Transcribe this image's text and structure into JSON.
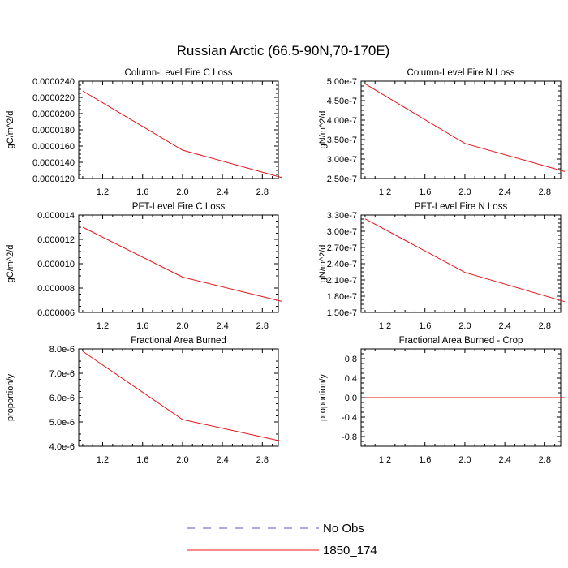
{
  "figure_title": "Russian Arctic (66.5-90N,70-170E)",
  "colors": {
    "series": "#e8141a",
    "obs": "#5a5aa0",
    "axis": "#000000"
  },
  "legend": {
    "placement": "bottom-center",
    "items": [
      {
        "label": "No Obs",
        "style": "dashed",
        "color": "#5a5aa0"
      },
      {
        "label": "1850_174",
        "style": "solid",
        "color": "#e8141a"
      }
    ]
  },
  "chart_data": [
    {
      "type": "line",
      "title": "Column-Level Fire C Loss",
      "ylabel": "gC/m^2/d",
      "xlim": [
        0.96,
        2.96
      ],
      "ylim": [
        1.2e-05,
        2.4e-05
      ],
      "xticks": [
        "1.2",
        "1.6",
        "2.0",
        "2.4",
        "2.8"
      ],
      "yticks": [
        "0.0000120",
        "0.0000140",
        "0.0000160",
        "0.0000180",
        "0.0000200",
        "0.0000220",
        "0.0000240"
      ],
      "series": [
        {
          "name": "1850_174",
          "x": [
            1,
            2,
            3
          ],
          "y": [
            2.28e-05,
            1.55e-05,
            1.21e-05
          ]
        }
      ]
    },
    {
      "type": "line",
      "title": "Column-Level Fire N Loss",
      "ylabel": "gN/m^2/d",
      "xlim": [
        0.96,
        2.96
      ],
      "ylim": [
        2.5e-07,
        5e-07
      ],
      "xticks": [
        "1.2",
        "1.6",
        "2.0",
        "2.4",
        "2.8"
      ],
      "yticks": [
        "2.50e-7",
        "3.00e-7",
        "3.50e-7",
        "4.00e-7",
        "4.50e-7",
        "5.00e-7"
      ],
      "series": [
        {
          "name": "1850_174",
          "x": [
            1,
            2,
            3
          ],
          "y": [
            4.93e-07,
            3.4e-07,
            2.68e-07
          ]
        }
      ]
    },
    {
      "type": "line",
      "title": "PFT-Level Fire C Loss",
      "ylabel": "gC/m^2/d",
      "xlim": [
        0.96,
        2.96
      ],
      "ylim": [
        6e-06,
        1.4e-05
      ],
      "xticks": [
        "1.2",
        "1.6",
        "2.0",
        "2.4",
        "2.8"
      ],
      "yticks": [
        "0.000006",
        "0.000008",
        "0.000010",
        "0.000012",
        "0.000014"
      ],
      "series": [
        {
          "name": "1850_174",
          "x": [
            1,
            2,
            3
          ],
          "y": [
            1.3e-05,
            8.9e-06,
            6.9e-06
          ]
        }
      ]
    },
    {
      "type": "line",
      "title": "PFT-Level Fire N Loss",
      "ylabel": "gN/m^2/d",
      "xlim": [
        0.96,
        2.96
      ],
      "ylim": [
        1.5e-07,
        3.3e-07
      ],
      "xticks": [
        "1.2",
        "1.6",
        "2.0",
        "2.4",
        "2.8"
      ],
      "yticks": [
        "1.50e-7",
        "1.80e-7",
        "2.10e-7",
        "2.40e-7",
        "2.70e-7",
        "3.00e-7",
        "3.30e-7"
      ],
      "series": [
        {
          "name": "1850_174",
          "x": [
            1,
            2,
            3
          ],
          "y": [
            3.23e-07,
            2.24e-07,
            1.7e-07
          ]
        }
      ]
    },
    {
      "type": "line",
      "title": "Fractional Area Burned",
      "ylabel": "proportion/y",
      "xlim": [
        0.96,
        2.96
      ],
      "ylim": [
        4e-06,
        8e-06
      ],
      "xticks": [
        "1.2",
        "1.6",
        "2.0",
        "2.4",
        "2.8"
      ],
      "yticks": [
        "4.0e-6",
        "5.0e-6",
        "6.0e-6",
        "7.0e-6",
        "8.0e-6"
      ],
      "series": [
        {
          "name": "1850_174",
          "x": [
            1,
            2,
            3
          ],
          "y": [
            7.9e-06,
            5.1e-06,
            4.2e-06
          ]
        }
      ]
    },
    {
      "type": "line",
      "title": "Fractional Area Burned - Crop",
      "ylabel": "proportion/y",
      "xlim": [
        0.96,
        2.96
      ],
      "ylim": [
        -1.0,
        1.0
      ],
      "xticks": [
        "1.2",
        "1.6",
        "2.0",
        "2.4",
        "2.8"
      ],
      "yticks": [
        "-0.8",
        "-0.4",
        "0.0",
        "0.4",
        "0.8"
      ],
      "series": [
        {
          "name": "1850_174",
          "x": [
            1,
            2,
            3
          ],
          "y": [
            0.0,
            0.0,
            0.0
          ]
        }
      ]
    }
  ]
}
